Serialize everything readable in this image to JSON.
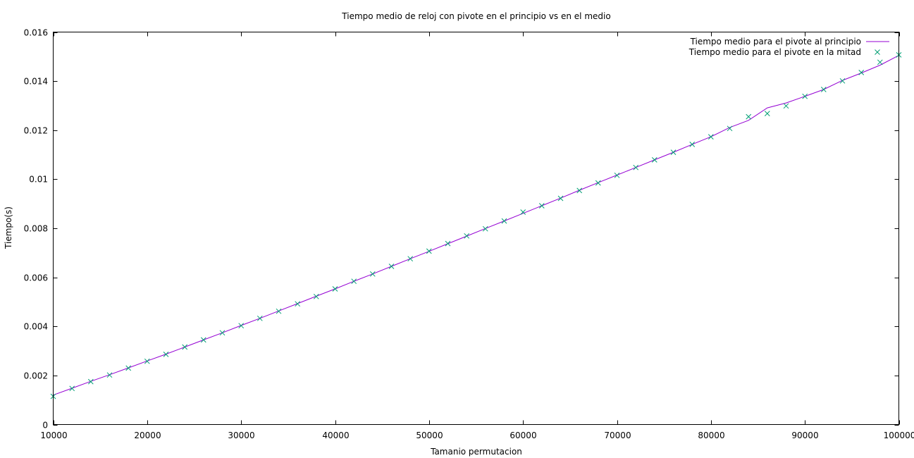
{
  "chart_data": {
    "type": "line",
    "title": "Tiempo medio de reloj con pivote en el principio vs en el medio",
    "xlabel": "Tamanio permutacion",
    "ylabel": "Tiempo(s)",
    "xlim": [
      10000,
      100000
    ],
    "ylim": [
      0,
      0.016
    ],
    "xticks": [
      10000,
      20000,
      30000,
      40000,
      50000,
      60000,
      70000,
      80000,
      90000,
      100000
    ],
    "xtick_labels": [
      "10000",
      "20000",
      "30000",
      "40000",
      "50000",
      "60000",
      "70000",
      "80000",
      "90000",
      "100000"
    ],
    "yticks": [
      0,
      0.002,
      0.004,
      0.006,
      0.008,
      0.01,
      0.012,
      0.014,
      0.016
    ],
    "ytick_labels": [
      "0",
      "0.002",
      "0.004",
      "0.006",
      "0.008",
      "0.01",
      "0.012",
      "0.014",
      "0.016"
    ],
    "grid": false,
    "legend_position": "top-right",
    "x": [
      10000,
      12000,
      14000,
      16000,
      18000,
      20000,
      22000,
      24000,
      26000,
      28000,
      30000,
      32000,
      34000,
      36000,
      38000,
      40000,
      42000,
      44000,
      46000,
      48000,
      50000,
      52000,
      54000,
      56000,
      58000,
      60000,
      62000,
      64000,
      66000,
      68000,
      70000,
      72000,
      74000,
      76000,
      78000,
      80000,
      82000,
      84000,
      86000,
      88000,
      90000,
      92000,
      94000,
      96000,
      98000,
      100000
    ],
    "series": [
      {
        "name": "Tiempo medio para el pivote al principio",
        "style": "line",
        "color": "#9400d3",
        "values": [
          0.0012,
          0.00148,
          0.00176,
          0.00203,
          0.00231,
          0.00259,
          0.00287,
          0.00316,
          0.00345,
          0.00374,
          0.00404,
          0.00433,
          0.00463,
          0.00493,
          0.00523,
          0.00553,
          0.00584,
          0.00614,
          0.00645,
          0.00676,
          0.00706,
          0.00737,
          0.00768,
          0.00799,
          0.0083,
          0.00861,
          0.00892,
          0.00923,
          0.00955,
          0.00986,
          0.01017,
          0.01048,
          0.01079,
          0.0111,
          0.01142,
          0.01173,
          0.01211,
          0.0124,
          0.01291,
          0.01311,
          0.01338,
          0.01366,
          0.01403,
          0.01433,
          0.01465,
          0.01505
        ]
      },
      {
        "name": "Tiempo medio para el pivote en la mitad",
        "style": "points",
        "marker": "x",
        "color": "#009e73",
        "values": [
          0.00115,
          0.00147,
          0.00175,
          0.00202,
          0.0023,
          0.00258,
          0.00286,
          0.00316,
          0.00345,
          0.00374,
          0.00403,
          0.00433,
          0.00462,
          0.00492,
          0.00522,
          0.00553,
          0.00584,
          0.00614,
          0.00645,
          0.00676,
          0.00707,
          0.00738,
          0.00769,
          0.00798,
          0.0083,
          0.00866,
          0.00892,
          0.00922,
          0.00954,
          0.00985,
          0.01016,
          0.01048,
          0.01079,
          0.0111,
          0.01142,
          0.01173,
          0.01207,
          0.01255,
          0.01268,
          0.01299,
          0.01338,
          0.01366,
          0.01401,
          0.01435,
          0.01477,
          0.01507
        ]
      }
    ]
  }
}
